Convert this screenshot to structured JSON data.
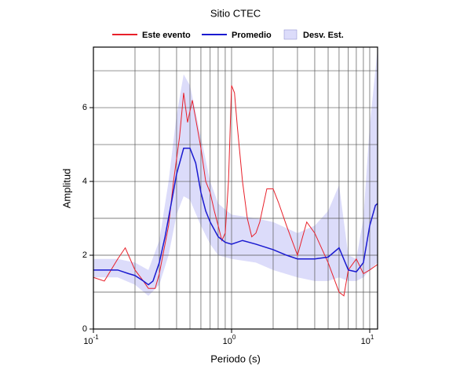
{
  "chart_data": {
    "type": "line",
    "title": "Sitio CTEC",
    "x_label": "Periodo (s)",
    "y_label": "Amplitud",
    "xscale": "log",
    "xlim": [
      0.1,
      11.4
    ],
    "ylim": [
      0,
      7.64
    ],
    "xticks": [
      {
        "value": 0.1,
        "label": "10",
        "exponent": "-1"
      },
      {
        "value": 1,
        "label": "10",
        "exponent": "0"
      },
      {
        "value": 10,
        "label": "10",
        "exponent": "1"
      }
    ],
    "yticks": [
      0,
      2,
      4,
      6
    ],
    "xgrid": [
      0.2,
      0.3,
      0.4,
      0.5,
      0.6,
      0.7,
      0.8,
      0.9,
      1,
      2,
      3,
      4,
      5,
      6,
      7,
      8,
      9,
      10
    ],
    "ygrid": [
      1,
      2,
      3,
      4,
      5,
      6,
      7
    ],
    "series": [
      {
        "name": "Desv. Est.",
        "color": "#dcdcfa",
        "kind": "band",
        "x": [
          0.1,
          0.15,
          0.2,
          0.25,
          0.3,
          0.35,
          0.4,
          0.45,
          0.5,
          0.6,
          0.7,
          0.8,
          1,
          1.5,
          2,
          3,
          4,
          5,
          6,
          7,
          8,
          9,
          10,
          11.4
        ],
        "lower": [
          1.4,
          1.4,
          1.2,
          0.9,
          1.2,
          2.0,
          3.1,
          3.6,
          3.5,
          2.8,
          2.3,
          2.0,
          1.9,
          1.8,
          1.6,
          1.4,
          1.3,
          1.3,
          1.4,
          1.3,
          1.3,
          1.4,
          1.6,
          1.8
        ],
        "upper": [
          1.9,
          1.9,
          1.8,
          1.6,
          2.4,
          4.0,
          5.8,
          6.9,
          6.6,
          5.2,
          4.0,
          3.4,
          3.1,
          3.0,
          2.9,
          2.6,
          2.8,
          3.2,
          3.9,
          2.0,
          1.9,
          3.0,
          5.5,
          7.6
        ]
      },
      {
        "name": "Este evento",
        "color": "#e8202a",
        "kind": "line",
        "x": [
          0.1,
          0.12,
          0.15,
          0.17,
          0.2,
          0.23,
          0.25,
          0.28,
          0.3,
          0.35,
          0.38,
          0.42,
          0.45,
          0.48,
          0.52,
          0.55,
          0.6,
          0.65,
          0.7,
          0.75,
          0.8,
          0.85,
          0.9,
          0.95,
          1.0,
          1.05,
          1.1,
          1.2,
          1.3,
          1.4,
          1.5,
          1.6,
          1.8,
          2.0,
          2.2,
          2.5,
          3,
          3.5,
          4,
          5,
          6,
          6.5,
          7,
          8,
          9,
          10,
          11.4
        ],
        "values": [
          1.4,
          1.3,
          1.9,
          2.2,
          1.6,
          1.3,
          1.1,
          1.1,
          1.5,
          2.8,
          4.0,
          5.2,
          6.4,
          5.6,
          6.2,
          5.7,
          4.9,
          4.0,
          3.7,
          3.2,
          2.8,
          2.4,
          2.6,
          4.0,
          6.6,
          6.4,
          5.5,
          4.0,
          3.0,
          2.5,
          2.6,
          2.9,
          3.8,
          3.8,
          3.4,
          2.8,
          2.0,
          2.9,
          2.6,
          1.8,
          1.0,
          0.9,
          1.6,
          1.9,
          1.5,
          1.6,
          1.75
        ]
      },
      {
        "name": "Promedio",
        "color": "#1a1ad0",
        "kind": "line",
        "x": [
          0.1,
          0.12,
          0.15,
          0.18,
          0.2,
          0.23,
          0.25,
          0.27,
          0.3,
          0.33,
          0.37,
          0.4,
          0.45,
          0.5,
          0.55,
          0.6,
          0.65,
          0.7,
          0.8,
          0.9,
          1.0,
          1.2,
          1.5,
          2,
          2.5,
          3,
          4,
          5,
          6,
          7,
          8,
          9,
          10,
          11,
          11.4
        ],
        "values": [
          1.6,
          1.6,
          1.6,
          1.5,
          1.45,
          1.3,
          1.2,
          1.3,
          1.8,
          2.5,
          3.5,
          4.2,
          4.9,
          4.9,
          4.5,
          3.7,
          3.2,
          2.9,
          2.5,
          2.35,
          2.3,
          2.4,
          2.3,
          2.15,
          2.0,
          1.9,
          1.9,
          1.95,
          2.2,
          1.6,
          1.55,
          1.8,
          2.8,
          3.35,
          3.4
        ]
      }
    ]
  }
}
